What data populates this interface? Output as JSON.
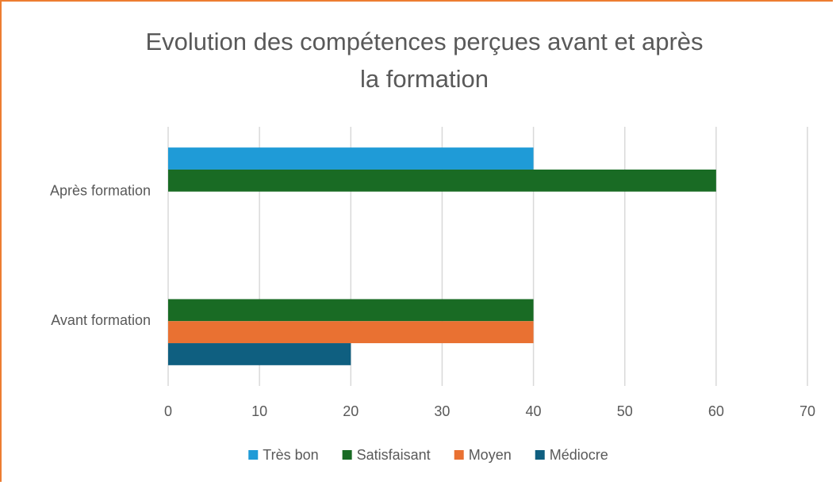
{
  "chart_data": {
    "type": "hbar",
    "title": [
      "Evolution des compétences perçues avant et après",
      "la formation"
    ],
    "categories": [
      "Avant formation",
      "Après formation"
    ],
    "series": [
      {
        "name": "Très bon",
        "color": "#1f9bd7",
        "values": [
          0,
          40
        ]
      },
      {
        "name": "Satisfaisant",
        "color": "#196b24",
        "values": [
          40,
          60
        ]
      },
      {
        "name": "Moyen",
        "color": "#e97132",
        "values": [
          40,
          0
        ]
      },
      {
        "name": "Médiocre",
        "color": "#0f5f80",
        "values": [
          20,
          0
        ]
      }
    ],
    "xlim": [
      0,
      70
    ],
    "xticks": [
      0,
      10,
      20,
      30,
      40,
      50,
      60,
      70
    ],
    "grid": true,
    "legend": "bottom"
  }
}
